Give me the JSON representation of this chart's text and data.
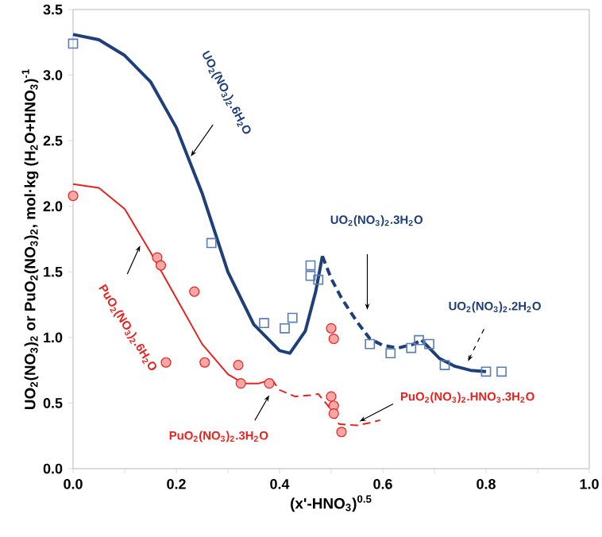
{
  "chart_data": {
    "type": "line",
    "xlabel": "(x'-HNO$_{3}$)$^{0.5}$",
    "ylabel": "UO$_{2}$(NO$_{3}$)$_{2}$ or PuO$_{2}$(NO$_{3}$)$_{2}$, mol·kg (H$_{2}$O+HNO$_{3}$)$^{-1}$",
    "xlim": [
      0,
      1
    ],
    "ylim": [
      0,
      3.5
    ],
    "xticks": [
      {
        "value": 0,
        "label": "0.0"
      },
      {
        "value": 0.1,
        "label": null
      },
      {
        "value": 0.2,
        "label": "0.2"
      },
      {
        "value": 0.3,
        "label": null
      },
      {
        "value": 0.4,
        "label": "0.4"
      },
      {
        "value": 0.5,
        "label": null
      },
      {
        "value": 0.6,
        "label": "0.6"
      },
      {
        "value": 0.7,
        "label": null
      },
      {
        "value": 0.8,
        "label": "0.8"
      },
      {
        "value": 0.9,
        "label": null
      },
      {
        "value": 1,
        "label": "1.0"
      }
    ],
    "yticks": [
      {
        "value": 0,
        "label": "0.0"
      },
      {
        "value": 0.5,
        "label": "0.5"
      },
      {
        "value": 1,
        "label": "1.0"
      },
      {
        "value": 1.5,
        "label": "1.5"
      },
      {
        "value": 2,
        "label": "2.0"
      },
      {
        "value": 2.5,
        "label": "2.5"
      },
      {
        "value": 3,
        "label": "3.0"
      },
      {
        "value": 3.5,
        "label": "3.5"
      }
    ],
    "grid": false,
    "series": [
      {
        "color": "#1f3f7a",
        "line_style": "solid",
        "x": [
          0,
          0.05,
          0.1,
          0.15,
          0.2,
          0.25,
          0.3,
          0.35,
          0.4,
          0.42,
          0.45,
          0.47,
          0.483
        ],
        "values": [
          3.31,
          3.27,
          3.15,
          2.95,
          2.6,
          2.1,
          1.5,
          1.1,
          0.9,
          0.88,
          1.05,
          1.35,
          1.62
        ]
      },
      {
        "color": "#1f3f7a",
        "line_style": "dashed",
        "x": [
          0.483,
          0.5,
          0.52,
          0.55,
          0.575,
          0.6,
          0.63,
          0.66,
          0.675
        ],
        "values": [
          1.62,
          1.45,
          1.3,
          1.12,
          0.99,
          0.94,
          0.92,
          0.95,
          0.98
        ]
      },
      {
        "color": "#1f3f7a",
        "line_style": "solid",
        "x": [
          0.675,
          0.69,
          0.71,
          0.74,
          0.77,
          0.8
        ],
        "values": [
          0.98,
          0.92,
          0.84,
          0.78,
          0.75,
          0.74
        ]
      },
      {
        "color": "#e8231f",
        "line_style": "solid",
        "x": [
          0,
          0.05,
          0.1,
          0.15,
          0.2,
          0.25,
          0.3,
          0.33,
          0.36,
          0.385
        ],
        "values": [
          2.17,
          2.14,
          1.98,
          1.65,
          1.3,
          0.95,
          0.72,
          0.65,
          0.65,
          0.68
        ]
      },
      {
        "color": "#e8231f",
        "line_style": "dashed",
        "x": [
          0.385,
          0.4,
          0.43,
          0.46,
          0.475,
          0.5,
          0.515,
          0.55,
          0.575,
          0.595
        ],
        "values": [
          0.68,
          0.6,
          0.55,
          0.56,
          0.57,
          0.45,
          0.34,
          0.33,
          0.35,
          0.37
        ]
      },
      {
        "type": "scatter",
        "color": "#5b7db5",
        "marker": "square",
        "x": [
          0,
          0.268,
          0.46,
          0.46,
          0.475,
          0.37,
          0.41,
          0.425,
          0.575,
          0.615,
          0.655,
          0.67,
          0.69,
          0.72,
          0.8,
          0.83
        ],
        "values": [
          3.24,
          1.72,
          1.55,
          1.47,
          1.44,
          1.11,
          1.07,
          1.15,
          0.95,
          0.88,
          0.92,
          0.98,
          0.95,
          0.79,
          0.74,
          0.74
        ]
      },
      {
        "type": "scatter",
        "color": "#e8231f",
        "marker": "circle",
        "x": [
          0,
          0.163,
          0.17,
          0.235,
          0.18,
          0.255,
          0.32,
          0.325,
          0.38,
          0.5,
          0.505,
          0.5,
          0.505,
          0.505,
          0.52
        ],
        "values": [
          2.08,
          1.61,
          1.55,
          1.35,
          0.81,
          0.81,
          0.79,
          0.65,
          0.65,
          1.07,
          0.99,
          0.55,
          0.48,
          0.42,
          0.28
        ]
      }
    ],
    "annotations": [
      "UO$_{2}$(NO$_{3}$)$_{2}$.6H$_{2}$O",
      "UO$_{2}$(NO$_{3}$)$_{2}$.3H$_{2}$O",
      "UO$_{2}$(NO$_{3}$)$_{2}$.2H$_{2}$O",
      "PuO$_{2}$(NO$_{3}$)$_{2}$.6H$_{2}$O",
      "PuO$_{2}$(NO$_{3}$)$_{2}$.3H$_{2}$O",
      "PuO$_{2}$(NO$_{3}$)$_{2}$.HNO$_{3}$.3H$_{2}$O"
    ]
  }
}
